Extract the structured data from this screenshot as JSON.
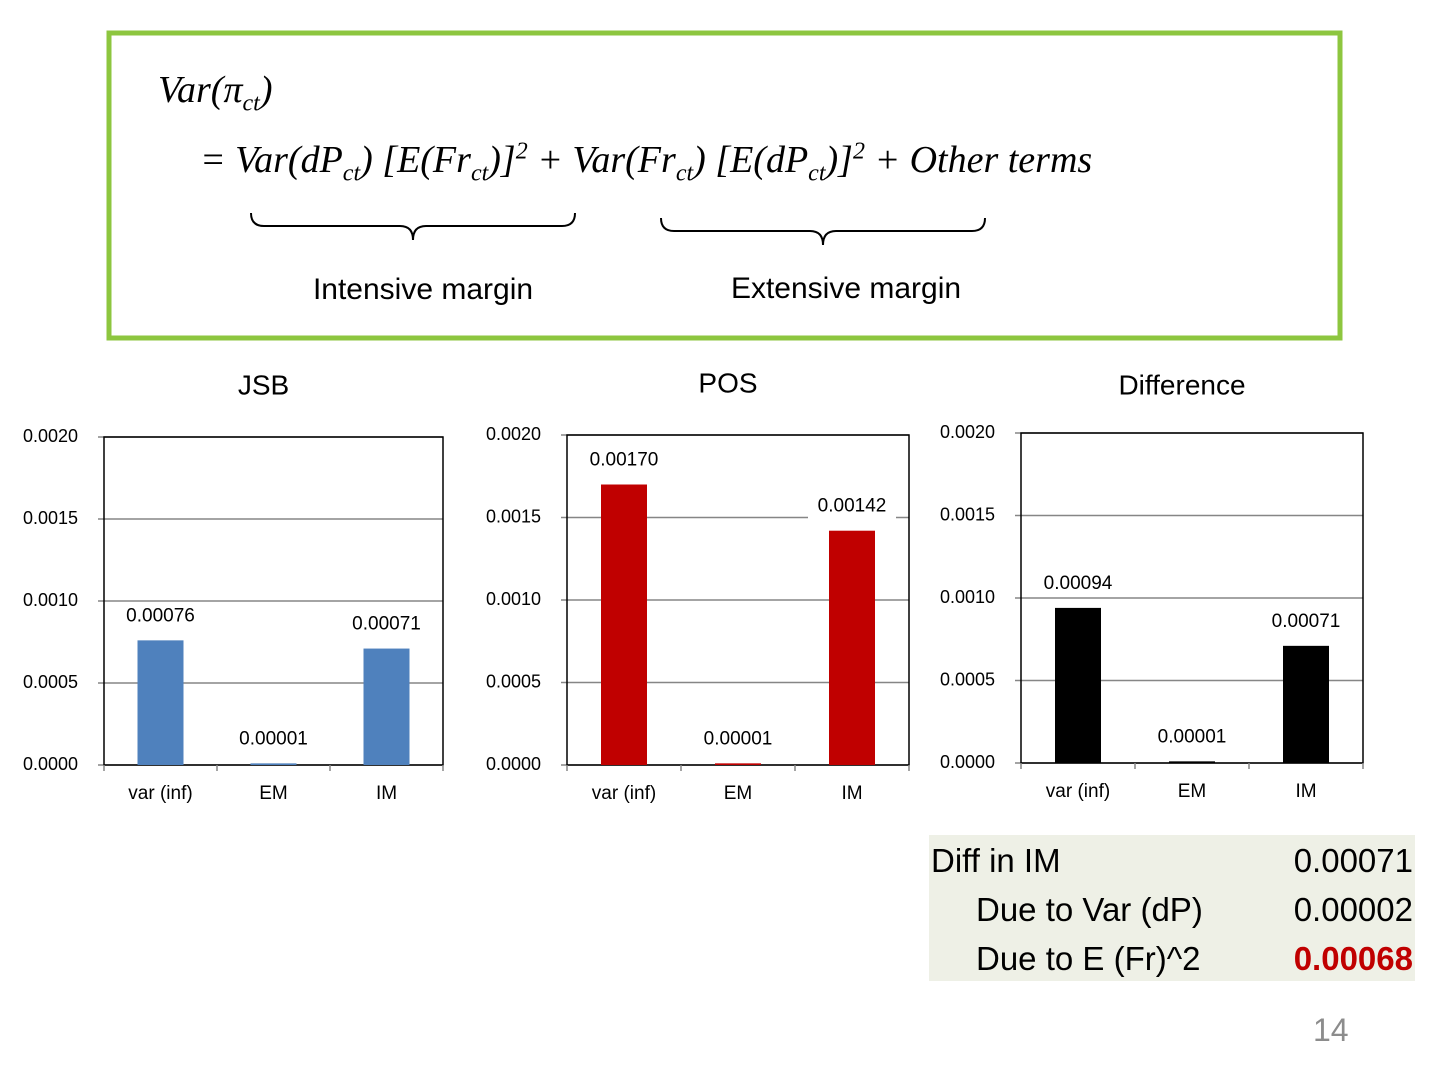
{
  "formula": {
    "line1": [
      "Var(π",
      "ct",
      ")"
    ],
    "line2": [
      "= Var(dP",
      "ct",
      ") [E(Fr",
      "ct",
      ")]",
      "2",
      " + Var(Fr",
      "ct",
      ") [E(dP",
      "ct",
      ")]",
      "2",
      " + Other terms"
    ],
    "intensive_label": "Intensive margin",
    "extensive_label": "Extensive margin"
  },
  "chart_data": [
    {
      "type": "bar",
      "title": "JSB",
      "categories": [
        "var (inf)",
        "EM",
        "IM"
      ],
      "values": [
        0.00076,
        1e-05,
        0.00071
      ],
      "value_labels": [
        "0.00076",
        "0.00001",
        "0.00071"
      ],
      "color": "#4f81bd",
      "ylim": [
        0,
        0.002
      ],
      "yticks": [
        {
          "value": 0,
          "label": "0.0000"
        },
        {
          "value": 0.0005,
          "label": "0.0005"
        },
        {
          "value": 0.001,
          "label": "0.0010"
        },
        {
          "value": 0.0015,
          "label": "0.0015"
        },
        {
          "value": 0.002,
          "label": "0.0020"
        }
      ],
      "grid": true
    },
    {
      "type": "bar",
      "title": "POS",
      "categories": [
        "var (inf)",
        "EM",
        "IM"
      ],
      "values": [
        0.0017,
        1e-05,
        0.00142
      ],
      "value_labels": [
        "0.00170",
        "0.00001",
        "0.00142"
      ],
      "color": "#c00000",
      "ylim": [
        0,
        0.002
      ],
      "yticks": [
        {
          "value": 0,
          "label": "0.0000"
        },
        {
          "value": 0.0005,
          "label": "0.0005"
        },
        {
          "value": 0.001,
          "label": "0.0010"
        },
        {
          "value": 0.0015,
          "label": "0.0015"
        },
        {
          "value": 0.002,
          "label": "0.0020"
        }
      ],
      "grid": true
    },
    {
      "type": "bar",
      "title": "Difference",
      "categories": [
        "var (inf)",
        "EM",
        "IM"
      ],
      "values": [
        0.00094,
        1e-05,
        0.00071
      ],
      "value_labels": [
        "0.00094",
        "0.00001",
        "0.00071"
      ],
      "color": "#000000",
      "ylim": [
        0,
        0.002
      ],
      "yticks": [
        {
          "value": 0,
          "label": "0.0000"
        },
        {
          "value": 0.0005,
          "label": "0.0005"
        },
        {
          "value": 0.001,
          "label": "0.0010"
        },
        {
          "value": 0.0015,
          "label": "0.0015"
        },
        {
          "value": 0.002,
          "label": "0.0020"
        }
      ],
      "grid": true
    }
  ],
  "summary_table": {
    "rows": [
      [
        "Diff in IM",
        "0.00071"
      ],
      [
        "Due to Var (dP)",
        "0.00002"
      ],
      [
        "Due to E (Fr)^2",
        "0.00068"
      ]
    ]
  },
  "page_number": "14"
}
